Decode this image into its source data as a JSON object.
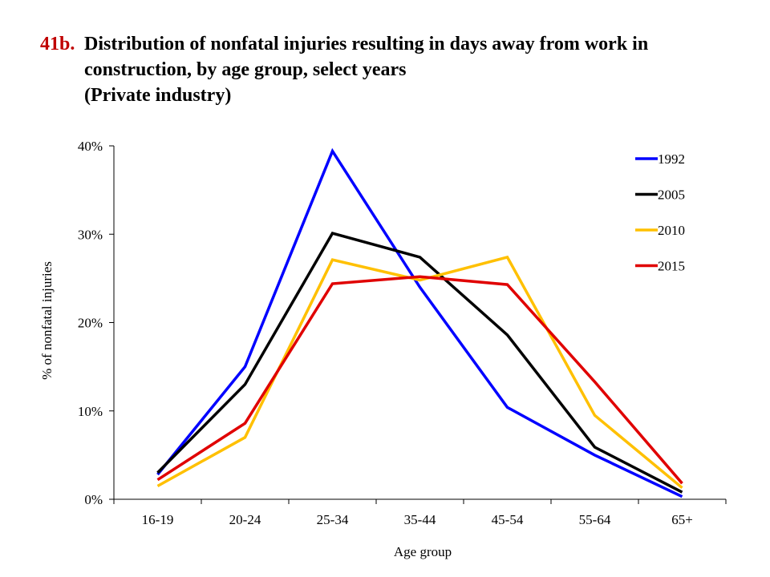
{
  "title": {
    "number": "41b.",
    "line1": "Distribution of nonfatal injuries resulting in days away from work in",
    "line2": "construction, by age group, select years",
    "line3": "(Private industry)"
  },
  "colors": {
    "title_number": "#c00000",
    "1992": "#0000ff",
    "2005": "#000000",
    "2010": "#ffc000",
    "2015": "#e00000"
  },
  "chart_data": {
    "type": "line",
    "title": "Distribution of nonfatal injuries resulting in days away from work in construction, by age group, select years (Private industry)",
    "xlabel": "Age group",
    "ylabel": "% of nonfatal injuries",
    "categories": [
      "16-19",
      "20-24",
      "25-34",
      "35-44",
      "45-54",
      "55-64",
      "65+"
    ],
    "ylim": [
      0,
      40
    ],
    "yticks": [
      0,
      10,
      20,
      30,
      40
    ],
    "ytick_labels": [
      "0%",
      "10%",
      "20%",
      "30%",
      "40%"
    ],
    "grid": false,
    "legend_position": "top-right",
    "series": [
      {
        "name": "1992",
        "color": "#0000ff",
        "values": [
          2.8,
          15.0,
          39.4,
          24.0,
          10.4,
          5.0,
          0.3
        ]
      },
      {
        "name": "2005",
        "color": "#000000",
        "values": [
          3.0,
          13.0,
          30.1,
          27.4,
          18.6,
          5.9,
          0.8
        ]
      },
      {
        "name": "2010",
        "color": "#ffc000",
        "values": [
          1.5,
          7.0,
          27.1,
          24.8,
          27.4,
          9.5,
          1.3
        ]
      },
      {
        "name": "2015",
        "color": "#e00000",
        "values": [
          2.2,
          8.6,
          24.4,
          25.2,
          24.3,
          13.3,
          1.8
        ]
      }
    ]
  }
}
